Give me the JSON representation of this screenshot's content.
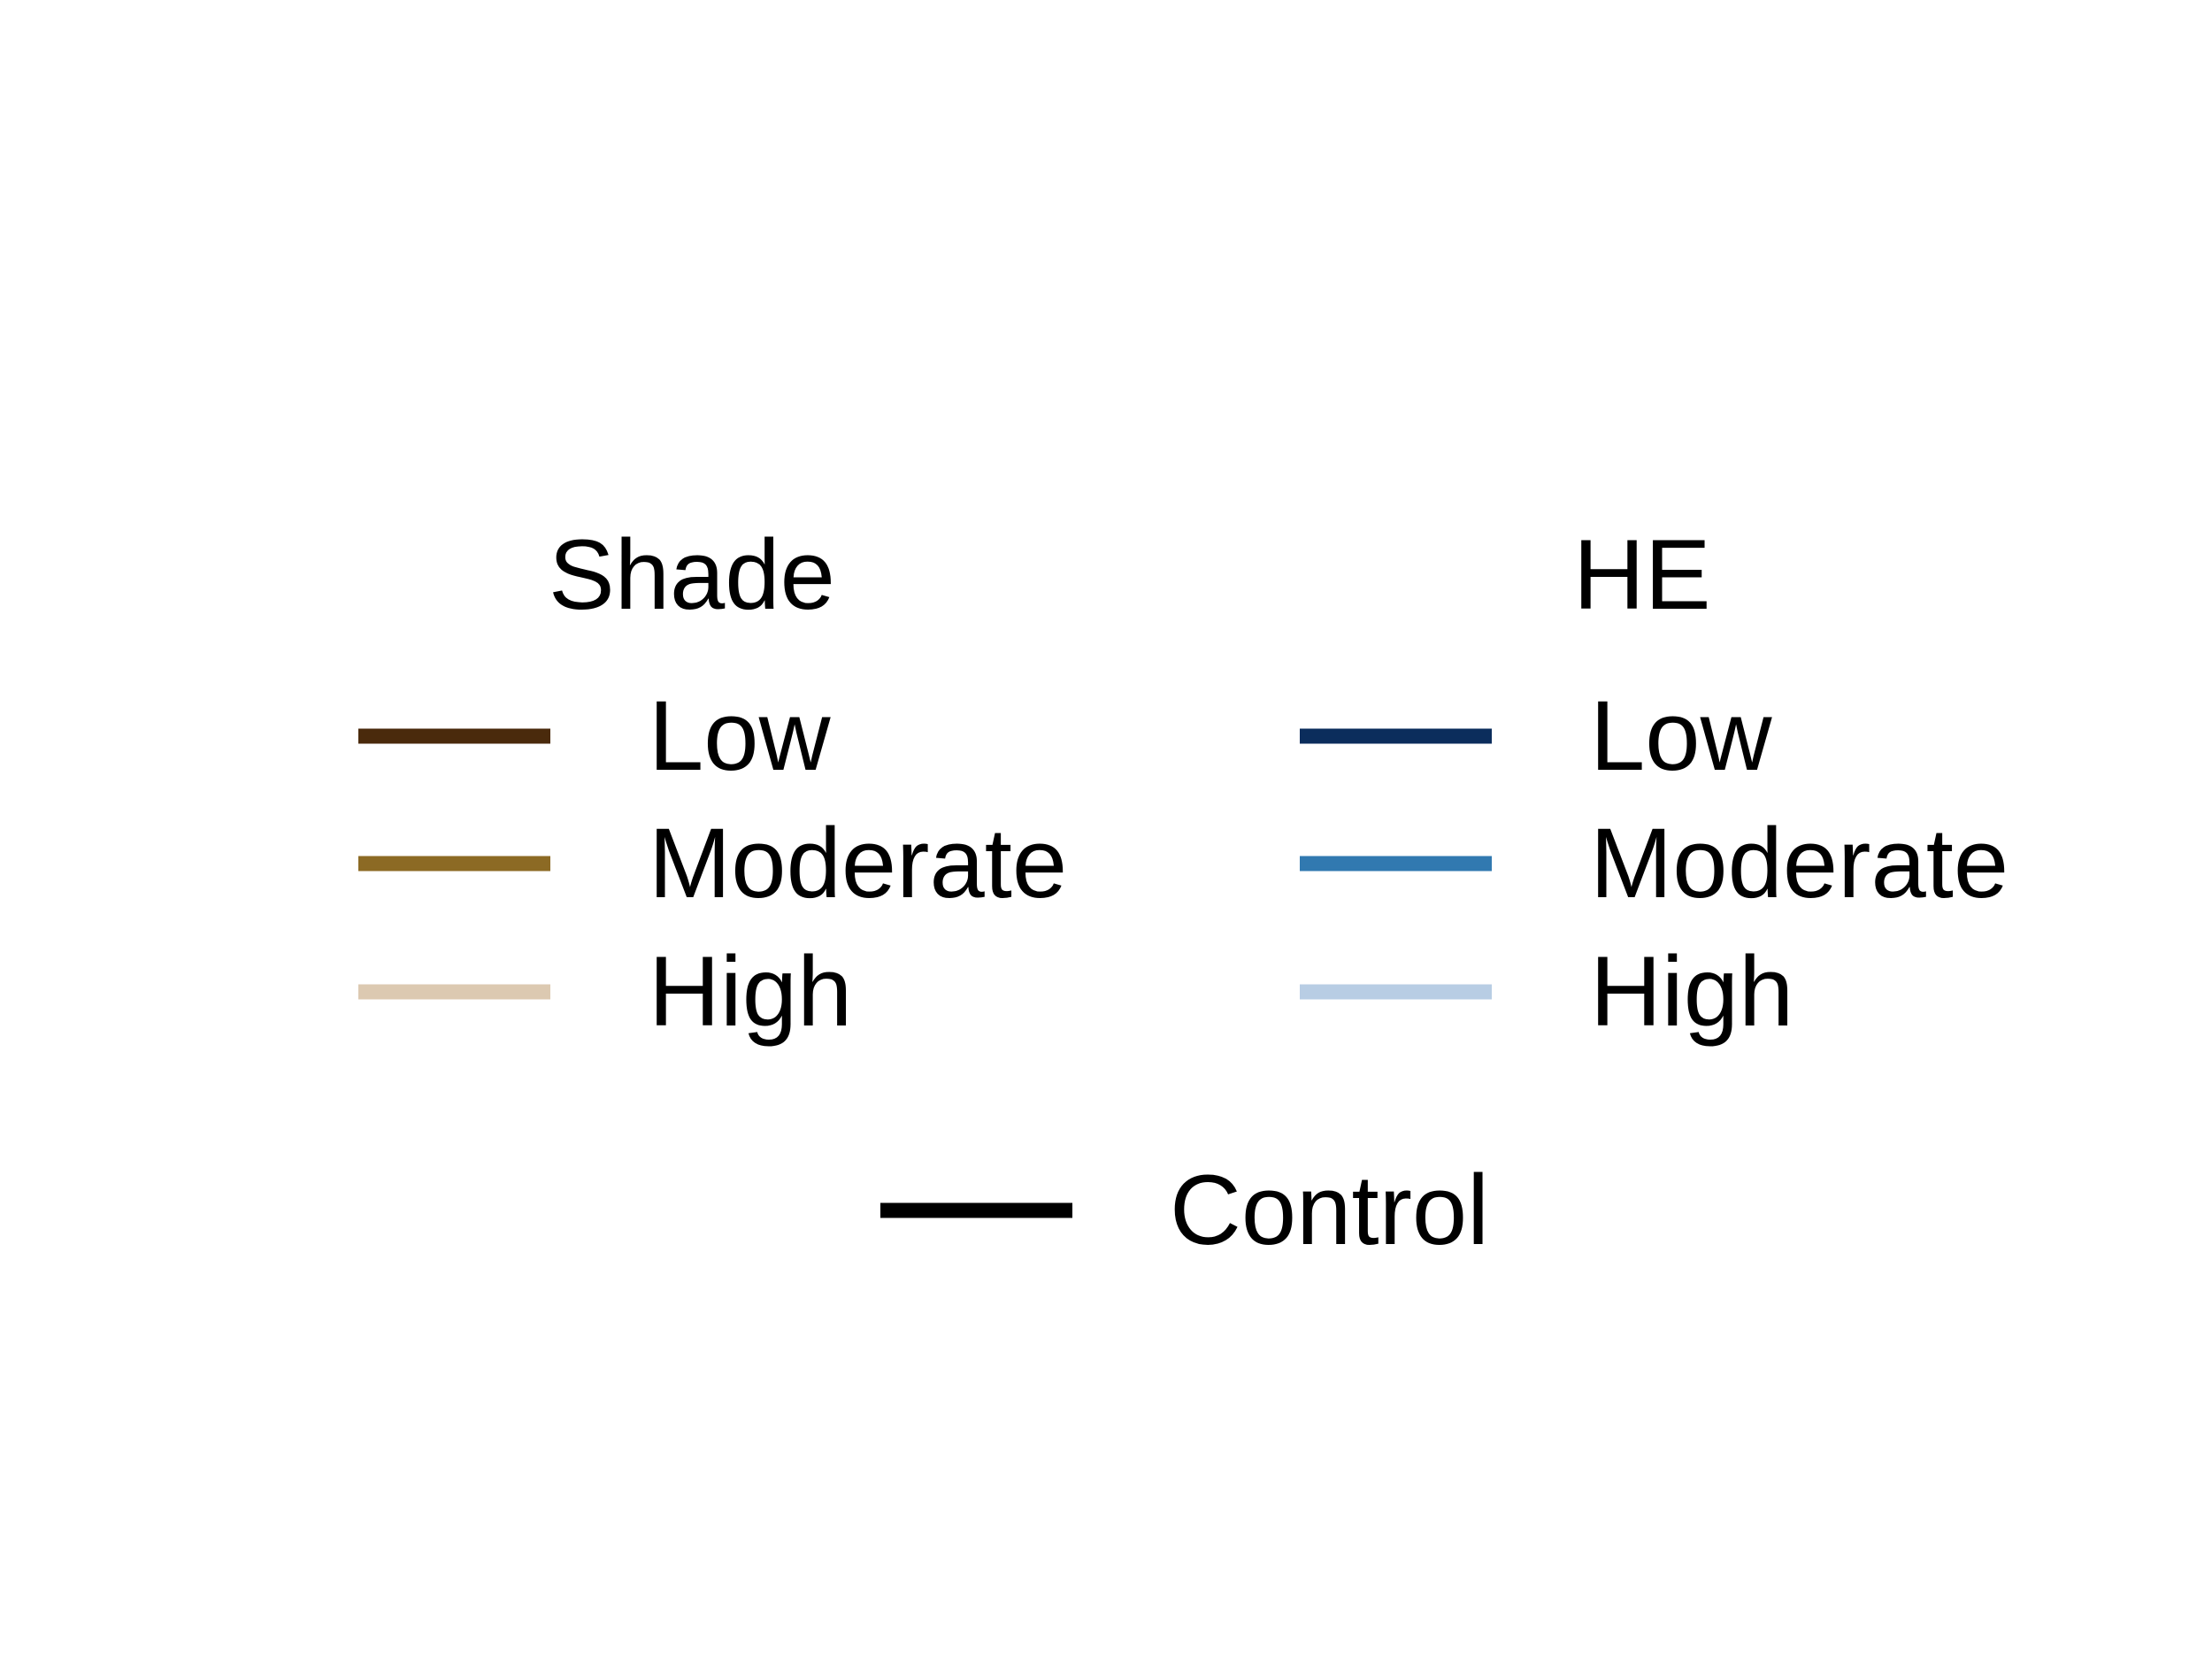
{
  "chart_data": {
    "type": "legend",
    "groups": [
      {
        "title": "Shade",
        "items": [
          {
            "label": "Low",
            "color": "#4a2a0c"
          },
          {
            "label": "Moderate",
            "color": "#8c6a24"
          },
          {
            "label": "High",
            "color": "#dcc9b1"
          }
        ]
      },
      {
        "title": "HE",
        "items": [
          {
            "label": "Low",
            "color": "#0b2d5c"
          },
          {
            "label": "Moderate",
            "color": "#3179b0"
          },
          {
            "label": "High",
            "color": "#b8cde4"
          }
        ]
      }
    ],
    "control": {
      "label": "Control",
      "color": "#000000"
    }
  }
}
